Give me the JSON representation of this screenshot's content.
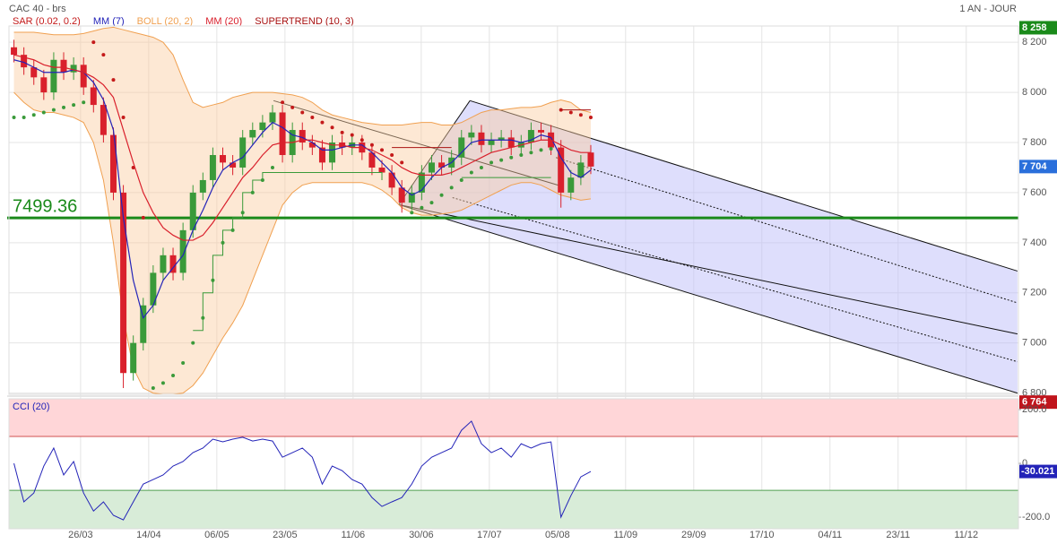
{
  "header": {
    "title": "CAC 40 - brs",
    "period": "1 AN - JOUR"
  },
  "chart_data": [
    {
      "type": "candlestick",
      "x": [
        0,
        2,
        4,
        6,
        8,
        10,
        12,
        14,
        16,
        18,
        20,
        22,
        24,
        26,
        28,
        30,
        32,
        34,
        36,
        38,
        40,
        42,
        44,
        46,
        48,
        50,
        52,
        54,
        56,
        58,
        60,
        62,
        64,
        66,
        68,
        70,
        72,
        74,
        76,
        78,
        80,
        82,
        84,
        86,
        88,
        90,
        92,
        94,
        96,
        98,
        100,
        102,
        104,
        106,
        108,
        110,
        112,
        114,
        116
      ],
      "open": [
        8180,
        8150,
        8100,
        8060,
        8000,
        8130,
        8080,
        8110,
        8020,
        7950,
        7830,
        7600,
        6880,
        7000,
        7150,
        7280,
        7350,
        7280,
        7450,
        7600,
        7650,
        7750,
        7720,
        7700,
        7820,
        7850,
        7880,
        7920,
        7750,
        7850,
        7800,
        7780,
        7720,
        7800,
        7780,
        7800,
        7760,
        7700,
        7680,
        7620,
        7560,
        7600,
        7680,
        7720,
        7700,
        7740,
        7820,
        7840,
        7790,
        7810,
        7820,
        7780,
        7800,
        7850,
        7840,
        7780,
        7600,
        7660,
        7760
      ],
      "high": [
        8210,
        8180,
        8130,
        8090,
        8160,
        8160,
        8140,
        8140,
        8050,
        7980,
        7860,
        7630,
        7030,
        7180,
        7310,
        7380,
        7380,
        7480,
        7630,
        7680,
        7780,
        7780,
        7750,
        7850,
        7880,
        7910,
        7950,
        7950,
        7880,
        7880,
        7830,
        7810,
        7830,
        7830,
        7830,
        7830,
        7790,
        7730,
        7710,
        7650,
        7630,
        7710,
        7750,
        7750,
        7770,
        7850,
        7870,
        7870,
        7840,
        7850,
        7850,
        7830,
        7880,
        7880,
        7870,
        7810,
        7690,
        7750,
        7790
      ],
      "low": [
        8120,
        8070,
        8030,
        7970,
        7970,
        8050,
        8050,
        7990,
        7920,
        7800,
        7570,
        6820,
        6850,
        6970,
        7120,
        7250,
        7250,
        7250,
        7420,
        7570,
        7620,
        7690,
        7670,
        7670,
        7790,
        7820,
        7850,
        7720,
        7720,
        7770,
        7750,
        7690,
        7690,
        7750,
        7750,
        7730,
        7670,
        7650,
        7590,
        7520,
        7530,
        7570,
        7650,
        7670,
        7670,
        7710,
        7790,
        7760,
        7760,
        7780,
        7750,
        7750,
        7770,
        7810,
        7750,
        7540,
        7570,
        7630,
        7674
      ],
      "close": [
        8150,
        8100,
        8060,
        8000,
        8130,
        8080,
        8110,
        8020,
        7950,
        7830,
        7600,
        6880,
        7000,
        7150,
        7280,
        7350,
        7280,
        7450,
        7600,
        7650,
        7750,
        7720,
        7700,
        7820,
        7850,
        7880,
        7920,
        7750,
        7850,
        7800,
        7780,
        7720,
        7800,
        7780,
        7800,
        7760,
        7700,
        7680,
        7620,
        7560,
        7600,
        7680,
        7720,
        7700,
        7740,
        7820,
        7840,
        7790,
        7810,
        7820,
        7780,
        7800,
        7850,
        7840,
        7780,
        7600,
        7660,
        7720,
        7704
      ],
      "up_color": "#3a9a3a",
      "down_color": "#d9202c",
      "overlays": [
        {
          "name": "SAR (0.02, 0.2)",
          "kind": "dots",
          "color": "#c41a1a",
          "values": [
            7900,
            7900,
            7910,
            7920,
            7930,
            7940,
            7950,
            7960,
            8200,
            8150,
            8050,
            7900,
            7700,
            7500,
            6820,
            6840,
            6870,
            6920,
            7000,
            7100,
            7250,
            7400,
            7450,
            7520,
            7600,
            7650,
            7700,
            7960,
            7940,
            7920,
            7900,
            7880,
            7860,
            7840,
            7830,
            7810,
            7790,
            7770,
            7750,
            7720,
            7520,
            7540,
            7560,
            7590,
            7620,
            7650,
            7680,
            7700,
            7720,
            7730,
            7740,
            7750,
            7760,
            7770,
            7775,
            7930,
            7920,
            7910,
            7900
          ]
        },
        {
          "name": "MM (7)",
          "kind": "line",
          "color": "#2323b8",
          "values": [
            8130,
            8120,
            8100,
            8080,
            8080,
            8080,
            8090,
            8080,
            8040,
            7970,
            7850,
            7500,
            7250,
            7100,
            7150,
            7250,
            7300,
            7350,
            7450,
            7530,
            7620,
            7690,
            7720,
            7740,
            7790,
            7840,
            7880,
            7860,
            7830,
            7820,
            7800,
            7770,
            7770,
            7780,
            7790,
            7790,
            7760,
            7720,
            7680,
            7620,
            7590,
            7610,
            7660,
            7700,
            7720,
            7760,
            7800,
            7810,
            7810,
            7810,
            7810,
            7800,
            7810,
            7830,
            7820,
            7740,
            7680,
            7660,
            7690
          ]
        },
        {
          "name": "BOLL (20, 2)",
          "kind": "band",
          "color": "#f0a050",
          "fill": "rgba(250,205,160,0.45)",
          "upper": [
            8240,
            8240,
            8240,
            8235,
            8230,
            8230,
            8230,
            8235,
            8245,
            8255,
            8260,
            8250,
            8240,
            8230,
            8220,
            8200,
            8150,
            8050,
            7960,
            7940,
            7950,
            7960,
            7980,
            7990,
            8000,
            8000,
            8000,
            7995,
            7990,
            7980,
            7960,
            7930,
            7910,
            7900,
            7890,
            7880,
            7875,
            7870,
            7870,
            7870,
            7875,
            7880,
            7880,
            7870,
            7870,
            7880,
            7900,
            7920,
            7930,
            7930,
            7935,
            7940,
            7940,
            7945,
            7960,
            7970,
            7960,
            7930,
            7920
          ],
          "lower": [
            8000,
            7960,
            7930,
            7920,
            7920,
            7910,
            7900,
            7880,
            7800,
            7650,
            7400,
            7100,
            6900,
            6820,
            6800,
            6795,
            6795,
            6800,
            6830,
            6880,
            6950,
            7020,
            7080,
            7150,
            7250,
            7350,
            7450,
            7550,
            7600,
            7630,
            7640,
            7640,
            7640,
            7640,
            7640,
            7640,
            7630,
            7610,
            7580,
            7540,
            7520,
            7510,
            7510,
            7515,
            7520,
            7530,
            7550,
            7570,
            7590,
            7610,
            7630,
            7640,
            7640,
            7630,
            7610,
            7590,
            7580,
            7570,
            7575
          ]
        },
        {
          "name": "MM (20)",
          "kind": "line",
          "color": "#d9202c",
          "values": [
            8150,
            8140,
            8130,
            8110,
            8100,
            8100,
            8090,
            8080,
            8060,
            8030,
            7980,
            7850,
            7720,
            7600,
            7520,
            7460,
            7430,
            7410,
            7410,
            7430,
            7480,
            7540,
            7600,
            7660,
            7700,
            7750,
            7790,
            7800,
            7800,
            7810,
            7810,
            7800,
            7790,
            7790,
            7780,
            7780,
            7770,
            7750,
            7730,
            7700,
            7680,
            7670,
            7670,
            7670,
            7680,
            7700,
            7720,
            7740,
            7760,
            7770,
            7780,
            7790,
            7800,
            7810,
            7810,
            7790,
            7770,
            7760,
            7760
          ]
        },
        {
          "name": "SUPERTREND (10, 3)",
          "kind": "step",
          "color": "#a81010",
          "values": [
            null,
            null,
            null,
            null,
            null,
            null,
            null,
            null,
            null,
            null,
            null,
            null,
            null,
            null,
            null,
            null,
            null,
            null,
            7050,
            7200,
            7350,
            7450,
            7500,
            7600,
            7650,
            7680,
            7680,
            7680,
            7680,
            7680,
            7680,
            7680,
            7680,
            7680,
            7680,
            7680,
            7680,
            7650,
            7780,
            7780,
            7780,
            7780,
            7780,
            7780,
            7780,
            7660,
            7660,
            7660,
            7660,
            7660,
            7660,
            7660,
            7660,
            7660,
            7660,
            7930,
            7930,
            7930,
            7930
          ]
        }
      ],
      "xlim": [
        -1,
        202
      ],
      "xticks": [
        {
          "value": 13.4,
          "label": "26/03"
        },
        {
          "value": 27.1,
          "label": "14/04"
        },
        {
          "value": 40.8,
          "label": "06/05"
        },
        {
          "value": 54.5,
          "label": "23/05"
        },
        {
          "value": 68.2,
          "label": "11/06"
        },
        {
          "value": 81.9,
          "label": "30/06"
        },
        {
          "value": 95.6,
          "label": "17/07"
        },
        {
          "value": 109.3,
          "label": "05/08"
        },
        {
          "value": 123.0,
          "label": "11/09"
        },
        {
          "value": 136.7,
          "label": "29/09"
        },
        {
          "value": 150.4,
          "label": "17/10"
        },
        {
          "value": 164.1,
          "label": "04/11"
        },
        {
          "value": 177.8,
          "label": "23/11"
        },
        {
          "value": 191.5,
          "label": "11/12"
        }
      ],
      "ylim": [
        6795,
        8265
      ],
      "yticks": [
        {
          "value": 6800,
          "label": "6 800"
        },
        {
          "value": 7000,
          "label": "7 000"
        },
        {
          "value": 7200,
          "label": "7 200"
        },
        {
          "value": 7400,
          "label": "7 400"
        },
        {
          "value": 7600,
          "label": "7 600"
        },
        {
          "value": 7800,
          "label": "7 800"
        },
        {
          "value": 8000,
          "label": "8 000"
        },
        {
          "value": 8200,
          "label": "8 200"
        }
      ],
      "grid": true,
      "level_line": {
        "value": 7499.36,
        "color": "#1a8a1a"
      },
      "pitchfork": {
        "color": "#111111",
        "fill": "rgba(190,190,250,0.5)",
        "lines": [
          {
            "x": [
              52.2,
              109.9
            ],
            "y": [
              7967,
              7627
            ],
            "dash": false
          },
          {
            "x": [
              77.4,
              91.7
            ],
            "y": [
              7552,
              7967
            ],
            "dash": false
          },
          {
            "x": [
              91.7,
              201.8
            ],
            "y": [
              7967,
              7287
            ],
            "dash": false
          },
          {
            "x": [
              77.4,
              201.8
            ],
            "y": [
              7552,
              7036
            ],
            "dash": false
          },
          {
            "x": [
              77.4,
              201.8
            ],
            "y": [
              7552,
              6800
            ],
            "dash": false
          },
          {
            "x": [
              109.0,
              201.8
            ],
            "y": [
              7740,
              7160
            ],
            "dash": true
          },
          {
            "x": [
              88.2,
              201.8
            ],
            "y": [
              7580,
              6925
            ],
            "dash": true
          }
        ]
      },
      "price_markers": [
        {
          "value": 8258,
          "label": "8 258",
          "color": "#1a8a1a"
        },
        {
          "value": 7704,
          "label": "7 704",
          "color": "#2a6fdb"
        },
        {
          "value": 6764,
          "label": "6 764",
          "color": "#c0141c"
        }
      ]
    },
    {
      "type": "line",
      "title": "CCI (20)",
      "x": [
        0,
        2,
        4,
        6,
        8,
        10,
        12,
        14,
        16,
        18,
        20,
        22,
        24,
        26,
        28,
        30,
        32,
        34,
        36,
        38,
        40,
        42,
        44,
        46,
        48,
        50,
        52,
        54,
        56,
        58,
        60,
        62,
        64,
        66,
        68,
        70,
        72,
        74,
        76,
        78,
        80,
        82,
        84,
        86,
        88,
        90,
        92,
        94,
        96,
        98,
        100,
        102,
        104,
        106,
        108,
        110,
        112,
        114,
        116
      ],
      "values": [
        0,
        -143,
        -110,
        -10,
        57,
        -43,
        7,
        -110,
        -177,
        -143,
        -193,
        -210,
        -143,
        -77,
        -60,
        -43,
        -10,
        7,
        40,
        57,
        90,
        80,
        90,
        97,
        83,
        90,
        83,
        23,
        40,
        57,
        23,
        -77,
        -10,
        -27,
        -60,
        -77,
        -127,
        -160,
        -143,
        -127,
        -77,
        -10,
        23,
        40,
        57,
        123,
        157,
        73,
        40,
        57,
        23,
        73,
        57,
        73,
        80,
        -200,
        -120,
        -50,
        -30.021
      ],
      "color": "#2323b8",
      "marker_color": "#2323b8",
      "xlim": [
        -1,
        202
      ],
      "ylim": [
        -243,
        240
      ],
      "yticks": [
        {
          "value": 200,
          "label": "200.0"
        },
        0,
        {
          "value": -200,
          "label": "-200.0"
        }
      ],
      "overbought": 100,
      "oversold": -100,
      "overbought_color": "#ffd6d8",
      "oversold_color": "#d8ecd8"
    }
  ]
}
